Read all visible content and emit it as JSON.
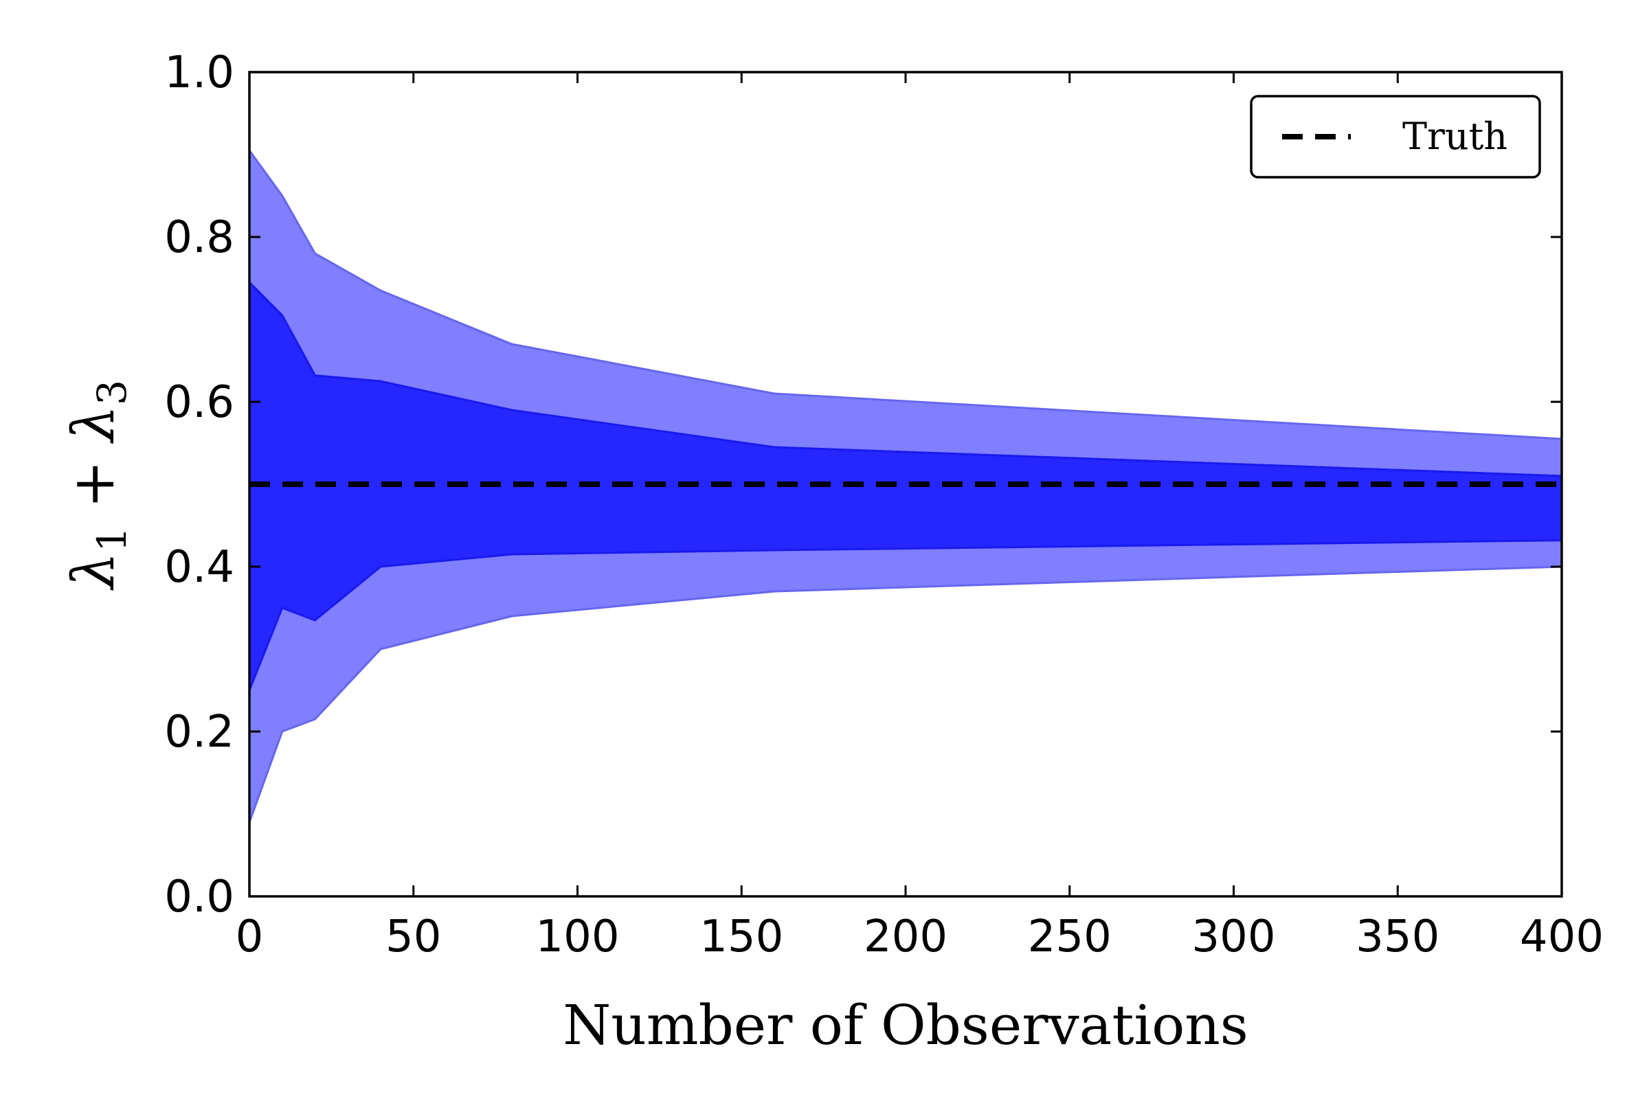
{
  "chart_data": {
    "type": "area",
    "xlabel": "Number of Observations",
    "ylabel_parts": [
      "λ",
      "1",
      " + λ",
      "3"
    ],
    "xlim": [
      0,
      400
    ],
    "ylim": [
      0,
      1.0
    ],
    "x_ticks": [
      0,
      50,
      100,
      150,
      200,
      250,
      300,
      350,
      400
    ],
    "y_ticks": [
      0.0,
      0.2,
      0.4,
      0.6,
      0.8,
      1.0
    ],
    "x_tick_labels": [
      "0",
      "50",
      "100",
      "150",
      "200",
      "250",
      "300",
      "350",
      "400"
    ],
    "y_tick_labels": [
      "0.0",
      "0.2",
      "0.4",
      "0.6",
      "0.8",
      "1.0"
    ],
    "grid": false,
    "legend": {
      "position": "top-right",
      "entries": [
        "Truth"
      ]
    },
    "x": [
      0,
      10,
      20,
      40,
      80,
      160,
      400
    ],
    "bands": [
      {
        "level": "outer",
        "color": "#7f7fff",
        "upper": [
          0.905,
          0.85,
          0.78,
          0.735,
          0.67,
          0.61,
          0.555
        ],
        "lower": [
          0.09,
          0.2,
          0.215,
          0.3,
          0.34,
          0.37,
          0.4
        ]
      },
      {
        "level": "inner",
        "color": "#2626ff",
        "upper": [
          0.745,
          0.705,
          0.632,
          0.625,
          0.59,
          0.545,
          0.51
        ],
        "lower": [
          0.25,
          0.35,
          0.335,
          0.4,
          0.415,
          0.42,
          0.432
        ]
      }
    ],
    "reference_line": {
      "name": "Truth",
      "value": 0.5,
      "style": "dashed",
      "color": "#000000"
    }
  }
}
